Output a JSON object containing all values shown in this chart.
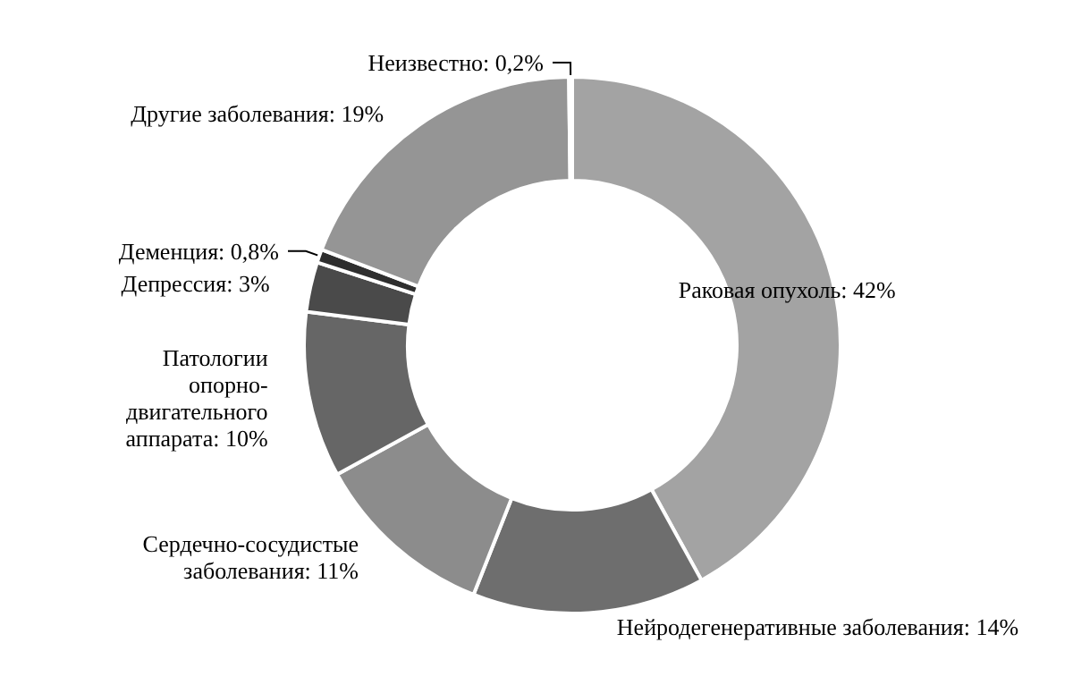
{
  "chart_data": {
    "type": "donut",
    "categories": [
      "Раковая опухоль",
      "Нейродегенеративные заболевания",
      "Сердечно-сосудистые\nзаболевания",
      "Патологии\nопорно-\nдвигательного\nаппарата",
      "Депрессия",
      "Деменция",
      "Другие заболевания",
      "Неизвестно"
    ],
    "values": [
      42,
      14,
      11,
      10,
      3,
      0.8,
      19,
      0.2
    ],
    "value_labels": [
      "42%",
      "14%",
      "11%",
      "10%",
      "3%",
      "0,8%",
      "19%",
      "0,2%"
    ],
    "colors": [
      "#a3a3a3",
      "#6e6e6e",
      "#8c8c8c",
      "#666666",
      "#4a4a4a",
      "#2e2e2e",
      "#959595",
      "#1e1e1e"
    ],
    "legend": false
  }
}
